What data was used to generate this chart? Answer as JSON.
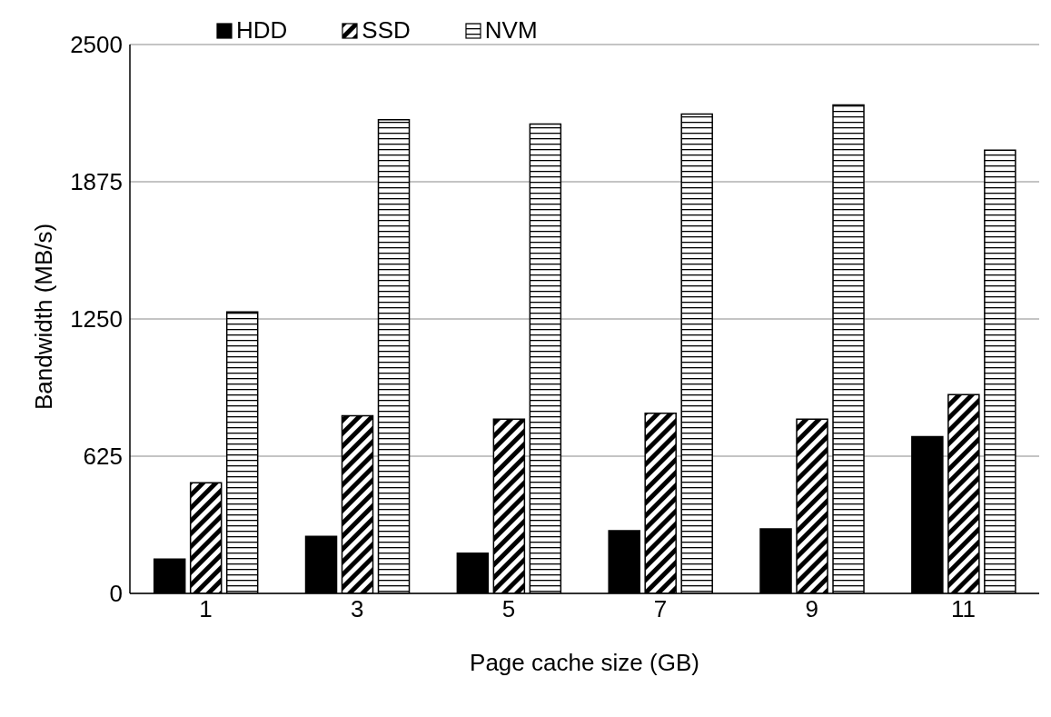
{
  "chart_data": {
    "type": "bar",
    "xlabel": "Page cache size (GB)",
    "ylabel": "Bandwidth (MB/s)",
    "categories": [
      "1",
      "3",
      "5",
      "7",
      "9",
      "11"
    ],
    "series": [
      {
        "name": "HDD",
        "color": "#000000",
        "values": [
          156,
          260,
          183,
          286,
          294,
          714
        ]
      },
      {
        "name": "SSD",
        "color": "#000000",
        "values": [
          504,
          809,
          794,
          821,
          794,
          905
        ]
      },
      {
        "name": "NVM",
        "color": "#000000",
        "values": [
          1282,
          2157,
          2138,
          2183,
          2225,
          2019
        ]
      }
    ],
    "ylim": [
      0,
      2500
    ],
    "yticks": [
      0,
      625,
      1250,
      1875,
      2500
    ],
    "grid": "y",
    "legend": "top"
  }
}
